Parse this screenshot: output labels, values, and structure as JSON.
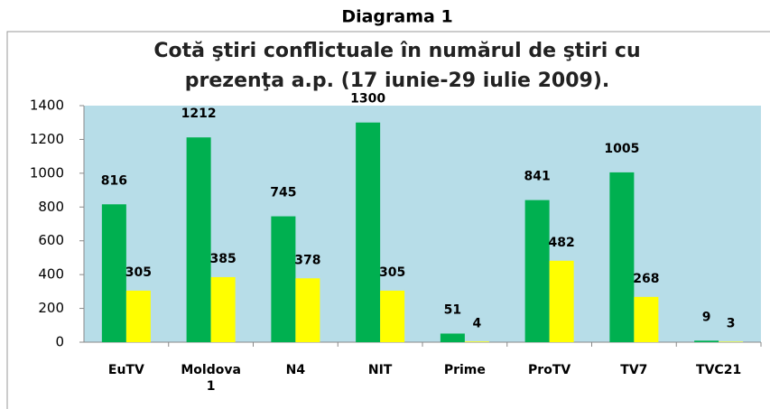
{
  "heading": "Diagrama 1",
  "chart_data": {
    "type": "bar",
    "title": [
      "Cotă ştiri conflictuale în numărul de ştiri cu",
      "prezenţa a.p. (17 iunie-29 iulie 2009)."
    ],
    "categories": [
      "EuTV",
      "Moldova 1",
      "N4",
      "NIT",
      "Prime",
      "ProTV",
      "TV7",
      "TVC21"
    ],
    "series": [
      {
        "color": "#00b050",
        "values": [
          816,
          1212,
          745,
          1300,
          51,
          841,
          1005,
          9
        ]
      },
      {
        "color": "#ffff00",
        "values": [
          305,
          385,
          378,
          305,
          4,
          482,
          268,
          3
        ]
      }
    ],
    "ylim": [
      0,
      1400
    ],
    "yticks": [
      0,
      200,
      400,
      600,
      800,
      1000,
      1200,
      1400
    ],
    "plot_background": "#b7dde8"
  }
}
